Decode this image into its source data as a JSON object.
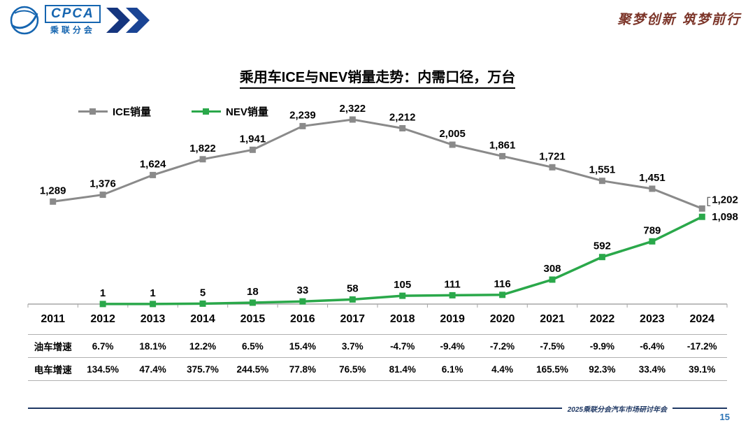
{
  "header": {
    "logo": {
      "acronym": "CPCA",
      "org_cn": "乘联分会"
    },
    "slogan": "聚梦创新 筑梦前行"
  },
  "title": "乘用车ICE与NEV销量走势：内需口径，万台",
  "chart_data": {
    "type": "line",
    "title": "乘用车ICE与NEV销量走势：内需口径，万台",
    "categories": [
      "2011",
      "2012",
      "2013",
      "2014",
      "2015",
      "2016",
      "2017",
      "2018",
      "2019",
      "2020",
      "2021",
      "2022",
      "2023",
      "2024"
    ],
    "series": [
      {
        "name": "ICE销量",
        "color": "#8a8a8a",
        "values": [
          1289,
          1376,
          1624,
          1822,
          1941,
          2239,
          2322,
          2212,
          2005,
          1861,
          1721,
          1551,
          1451,
          1202
        ]
      },
      {
        "name": "NEV销量",
        "color": "#2aa84a",
        "values": [
          null,
          1,
          1,
          5,
          18,
          33,
          58,
          105,
          111,
          116,
          308,
          592,
          789,
          1098
        ]
      }
    ],
    "xlabel": "",
    "ylabel": "",
    "ylim": [
      0,
      2400
    ],
    "grid": false,
    "data_labels": true,
    "legend_position": "top-left"
  },
  "growth_table": {
    "rows": [
      {
        "label": "油车增速",
        "values": [
          "6.7%",
          "18.1%",
          "12.2%",
          "6.5%",
          "15.4%",
          "3.7%",
          "-4.7%",
          "-9.4%",
          "-7.2%",
          "-7.5%",
          "-9.9%",
          "-6.4%",
          "-17.2%"
        ]
      },
      {
        "label": "电车增速",
        "values": [
          "134.5%",
          "47.4%",
          "375.7%",
          "244.5%",
          "77.8%",
          "76.5%",
          "81.4%",
          "6.1%",
          "4.4%",
          "165.5%",
          "92.3%",
          "33.4%",
          "39.1%"
        ]
      }
    ]
  },
  "footer": {
    "conference": "2025乘联分会汽车市场研讨年会",
    "page": "15"
  }
}
